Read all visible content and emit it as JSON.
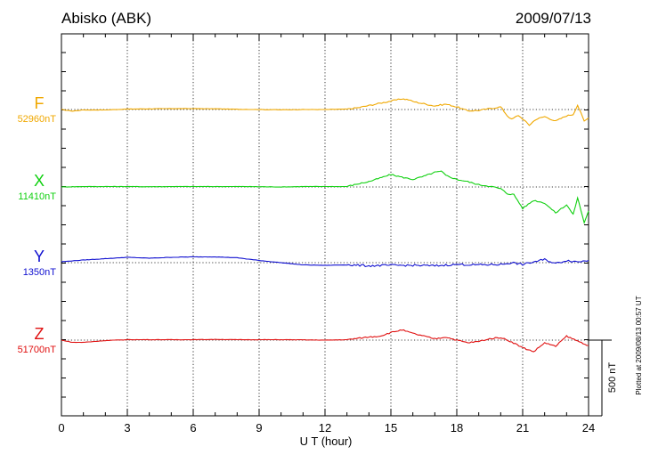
{
  "header": {
    "station": "Abisko (ABK)",
    "date": "2009/07/13"
  },
  "footer": {
    "plotted_note": "Plotted at 2009/08/13 00:57 UT"
  },
  "chart_data": {
    "type": "line",
    "title": "Abisko (ABK)",
    "date": "2009/07/13",
    "xlabel": "U T (hour)",
    "xlim": [
      0,
      24
    ],
    "xticks": [
      "0",
      "3",
      "6",
      "9",
      "12",
      "15",
      "18",
      "21",
      "24"
    ],
    "grid": "dotted vertical lines every 3 hours; dotted baseline per component",
    "scale_bar": {
      "label": "500 nT",
      "value_nT": 500
    },
    "series": [
      {
        "name": "F",
        "baseline_label": "52960nT",
        "color": "#f0a800",
        "x": [
          0,
          0.5,
          1,
          2,
          3,
          4,
          5,
          6,
          7,
          8,
          9,
          10,
          11,
          12,
          13,
          13.5,
          14,
          14.5,
          15,
          15.5,
          15.8,
          16,
          16.5,
          17,
          17.5,
          18,
          18.5,
          19,
          19.5,
          20,
          20.3,
          20.5,
          20.8,
          21,
          21.3,
          21.6,
          22,
          22.5,
          23,
          23.3,
          23.5,
          23.8,
          24
        ],
        "values": [
          0,
          -18,
          -5,
          -5,
          5,
          8,
          10,
          10,
          8,
          3,
          0,
          -3,
          0,
          0,
          5,
          20,
          45,
          70,
          95,
          120,
          110,
          90,
          65,
          40,
          60,
          30,
          -15,
          -10,
          10,
          30,
          -70,
          -110,
          -65,
          -105,
          -175,
          -110,
          -80,
          -130,
          -70,
          -55,
          50,
          -130,
          -95
        ]
      },
      {
        "name": "X",
        "baseline_label": "11410nT",
        "color": "#10d010",
        "x": [
          0,
          1,
          2,
          3,
          4,
          5,
          6,
          7,
          8,
          9,
          10,
          11,
          12,
          13,
          13.5,
          14,
          14.5,
          15,
          15.5,
          16,
          16.5,
          17,
          17.3,
          17.5,
          18,
          18.5,
          19,
          19.5,
          20,
          20.3,
          20.6,
          21,
          21.5,
          22,
          22.5,
          23,
          23.3,
          23.5,
          23.8,
          24
        ],
        "values": [
          0,
          5,
          5,
          5,
          3,
          5,
          5,
          5,
          5,
          3,
          0,
          5,
          5,
          5,
          35,
          60,
          100,
          140,
          110,
          85,
          120,
          165,
          175,
          130,
          85,
          60,
          25,
          10,
          -20,
          -75,
          -85,
          -240,
          -150,
          -180,
          -290,
          -200,
          -310,
          -120,
          -400,
          -270
        ]
      },
      {
        "name": "Y",
        "baseline_label": "1350nT",
        "color": "#1010d0",
        "x": [
          0,
          1,
          2,
          3,
          4,
          5,
          6,
          7,
          8,
          9,
          10,
          11,
          12,
          13,
          14,
          15,
          16,
          17,
          18,
          19,
          20,
          20.5,
          21,
          22,
          22.5,
          23,
          23.5,
          24
        ],
        "values": [
          10,
          30,
          45,
          60,
          50,
          60,
          65,
          65,
          55,
          25,
          0,
          -25,
          -30,
          -25,
          -35,
          -30,
          -30,
          -35,
          -20,
          -25,
          -20,
          0,
          -20,
          35,
          -10,
          25,
          10,
          25
        ]
      },
      {
        "name": "Z",
        "baseline_label": "51700nT",
        "color": "#e01010",
        "x": [
          0,
          0.5,
          1,
          2,
          3,
          4,
          5,
          6,
          7,
          8,
          9,
          10,
          11,
          12,
          13,
          14,
          14.5,
          15,
          15.5,
          16,
          16.5,
          17,
          17.5,
          18,
          18.5,
          19,
          19.5,
          20,
          20.5,
          21,
          21.5,
          22,
          22.5,
          23,
          23.5,
          24
        ],
        "values": [
          0,
          -25,
          -25,
          -5,
          5,
          5,
          5,
          5,
          8,
          5,
          5,
          5,
          3,
          0,
          5,
          35,
          45,
          85,
          115,
          75,
          45,
          15,
          35,
          0,
          -30,
          -15,
          15,
          30,
          -20,
          -85,
          -130,
          -30,
          -70,
          45,
          -10,
          -60
        ]
      }
    ]
  }
}
